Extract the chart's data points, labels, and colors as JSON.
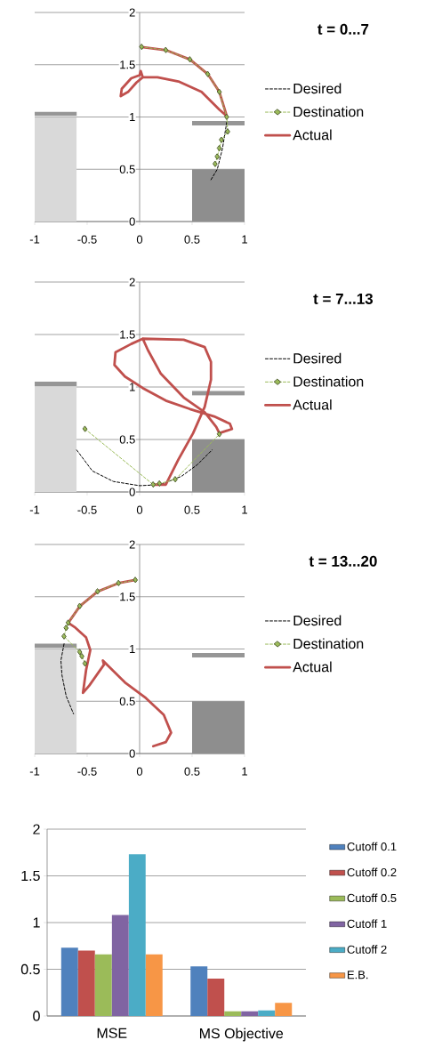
{
  "chart_data": [
    {
      "type": "line",
      "legend_title": "t = 0...7",
      "xlim": [
        -1,
        1
      ],
      "ylim": [
        0,
        2
      ],
      "xticks": [
        -1,
        -0.5,
        0,
        0.5,
        1
      ],
      "yticks": [
        0,
        0.5,
        1,
        1.5,
        2
      ],
      "grid": "y",
      "legend": "right",
      "series": [
        {
          "type": "area",
          "color": "#d9d9d9",
          "x": [
            -1,
            -0.6
          ],
          "values": [
            1.0,
            1.0
          ]
        },
        {
          "type": "line",
          "color": "#969696",
          "x": [
            -1,
            -0.6
          ],
          "values": [
            1.03,
            1.03
          ]
        },
        {
          "type": "area",
          "color": "#8e8e8e",
          "x": [
            0.5,
            1
          ],
          "values": [
            0.5,
            0.5
          ]
        },
        {
          "type": "line",
          "color": "#969696",
          "x": [
            0.5,
            1
          ],
          "values": [
            0.94,
            0.94
          ]
        },
        {
          "name": "Desired",
          "type": "line",
          "color": "#000000",
          "line_style": "dashed",
          "marker": "none",
          "x": [
            0.68,
            0.74,
            0.79,
            0.83
          ],
          "values": [
            0.4,
            0.5,
            0.7,
            0.95
          ]
        },
        {
          "name": "Destination",
          "type": "line",
          "color": "#9bbb59",
          "line_style": "dashed",
          "marker": "diamond",
          "x": [
            0.72,
            0.74,
            0.76,
            0.78,
            0.84,
            0.83,
            0.76,
            0.65,
            0.48,
            0.25,
            0.02
          ],
          "values": [
            0.55,
            0.62,
            0.7,
            0.78,
            0.86,
            1.0,
            1.24,
            1.41,
            1.55,
            1.64,
            1.67
          ]
        },
        {
          "name": "Actual",
          "type": "line",
          "color": "#c0504d",
          "line_style": "solid",
          "marker": "none",
          "x": [
            0.02,
            0.25,
            0.48,
            0.65,
            0.76,
            0.83,
            0.76,
            0.59,
            0.37,
            0.17,
            0.03,
            0.01,
            0.0,
            -0.08,
            -0.17,
            -0.18,
            -0.11,
            -0.03,
            0.03
          ],
          "values": [
            1.67,
            1.64,
            1.55,
            1.41,
            1.24,
            1.01,
            1.07,
            1.24,
            1.34,
            1.38,
            1.38,
            1.44,
            1.4,
            1.37,
            1.27,
            1.2,
            1.24,
            1.33,
            1.38
          ]
        }
      ]
    },
    {
      "type": "line",
      "legend_title": "t = 7...13",
      "xlim": [
        -1,
        1
      ],
      "ylim": [
        0,
        2
      ],
      "xticks": [
        -1,
        -0.5,
        0,
        0.5,
        1
      ],
      "yticks": [
        0,
        0.5,
        1,
        1.5,
        2
      ],
      "grid": "y",
      "legend": "right",
      "series": [
        {
          "type": "area",
          "color": "#d9d9d9",
          "x": [
            -1,
            -0.6
          ],
          "values": [
            1.0,
            1.0
          ]
        },
        {
          "type": "line",
          "color": "#969696",
          "x": [
            -1,
            -0.6
          ],
          "values": [
            1.03,
            1.03
          ]
        },
        {
          "type": "area",
          "color": "#8e8e8e",
          "x": [
            0.5,
            1
          ],
          "values": [
            0.5,
            0.5
          ]
        },
        {
          "type": "line",
          "color": "#969696",
          "x": [
            0.5,
            1
          ],
          "values": [
            0.94,
            0.94
          ]
        },
        {
          "name": "Desired",
          "type": "line",
          "color": "#000000",
          "line_style": "dashed",
          "marker": "none",
          "x": [
            -0.6,
            -0.45,
            -0.25,
            0.0,
            0.2,
            0.4,
            0.55,
            0.69
          ],
          "values": [
            0.4,
            0.2,
            0.1,
            0.06,
            0.07,
            0.15,
            0.26,
            0.4
          ]
        },
        {
          "name": "Destination",
          "type": "line",
          "color": "#9bbb59",
          "line_style": "dashed",
          "marker": "diamond",
          "x": [
            -0.52,
            0.13,
            0.19,
            0.34,
            0.76
          ],
          "values": [
            0.6,
            0.07,
            0.08,
            0.12,
            0.55
          ]
        },
        {
          "name": "Actual",
          "type": "line",
          "color": "#c0504d",
          "line_style": "solid",
          "marker": "none",
          "x": [
            0.14,
            0.25,
            0.37,
            0.51,
            0.62,
            0.68,
            0.68,
            0.62,
            0.42,
            0.03,
            -0.08,
            -0.23,
            -0.24,
            -0.14,
            0.03,
            0.25,
            0.48,
            0.71,
            0.86,
            0.88,
            0.76,
            0.73,
            0.62,
            0.42,
            0.2,
            0.08,
            0.03
          ],
          "values": [
            0.07,
            0.07,
            0.31,
            0.56,
            0.81,
            1.07,
            1.24,
            1.38,
            1.45,
            1.46,
            1.41,
            1.33,
            1.21,
            1.1,
            0.99,
            0.87,
            0.79,
            0.72,
            0.65,
            0.6,
            0.56,
            0.62,
            0.76,
            0.9,
            1.13,
            1.35,
            1.46
          ]
        }
      ]
    },
    {
      "type": "line",
      "legend_title": "t = 13...20",
      "xlim": [
        -1,
        1
      ],
      "ylim": [
        0,
        2
      ],
      "xticks": [
        -1,
        -0.5,
        0,
        0.5,
        1
      ],
      "yticks": [
        0,
        0.5,
        1,
        1.5,
        2
      ],
      "grid": "y",
      "legend": "right",
      "series": [
        {
          "type": "area",
          "color": "#d9d9d9",
          "x": [
            -1,
            -0.6
          ],
          "values": [
            1.0,
            1.0
          ]
        },
        {
          "type": "line",
          "color": "#969696",
          "x": [
            -1,
            -0.6
          ],
          "values": [
            1.03,
            1.03
          ]
        },
        {
          "type": "area",
          "color": "#8e8e8e",
          "x": [
            0.5,
            1
          ],
          "values": [
            0.5,
            0.5
          ]
        },
        {
          "type": "line",
          "color": "#969696",
          "x": [
            0.5,
            1
          ],
          "values": [
            0.94,
            0.94
          ]
        },
        {
          "name": "Desired",
          "type": "line",
          "color": "#000000",
          "line_style": "dashed",
          "marker": "none",
          "x": [
            -0.72,
            -0.75,
            -0.74,
            -0.7,
            -0.63
          ],
          "values": [
            1.05,
            0.89,
            0.75,
            0.55,
            0.38
          ]
        },
        {
          "name": "Destination",
          "type": "line",
          "color": "#9bbb59",
          "line_style": "dashed",
          "marker": "diamond",
          "x": [
            -0.04,
            -0.2,
            -0.4,
            -0.57,
            -0.68,
            -0.7,
            -0.72,
            -0.57,
            -0.55,
            -0.52
          ],
          "values": [
            1.66,
            1.63,
            1.55,
            1.41,
            1.25,
            1.2,
            1.12,
            0.97,
            0.93,
            0.86
          ]
        },
        {
          "name": "Actual",
          "type": "line",
          "color": "#c0504d",
          "line_style": "solid",
          "marker": "none",
          "x": [
            -0.04,
            -0.2,
            -0.4,
            -0.57,
            -0.68,
            -0.62,
            -0.51,
            -0.47,
            -0.51,
            -0.54,
            -0.48,
            -0.34,
            -0.35,
            -0.31,
            -0.14,
            0.06,
            0.23,
            0.3,
            0.25,
            0.13
          ],
          "values": [
            1.66,
            1.63,
            1.55,
            1.41,
            1.25,
            1.21,
            1.11,
            0.99,
            0.8,
            0.58,
            0.65,
            0.85,
            0.89,
            0.85,
            0.68,
            0.53,
            0.37,
            0.2,
            0.11,
            0.07
          ]
        }
      ]
    },
    {
      "type": "bar",
      "categories": [
        "MSE",
        "MS Objective"
      ],
      "ylim": [
        0,
        2
      ],
      "yticks": [
        0,
        0.5,
        1,
        1.5,
        2
      ],
      "grid": "y",
      "legend": "right",
      "series": [
        {
          "name": "Cutoff 0.1",
          "color": "#4f81bd",
          "values": [
            0.73,
            0.53
          ]
        },
        {
          "name": "Cutoff 0.2",
          "color": "#c0504d",
          "values": [
            0.7,
            0.4
          ]
        },
        {
          "name": "Cutoff 0.5",
          "color": "#9bbb59",
          "values": [
            0.66,
            0.05
          ]
        },
        {
          "name": "Cutoff 1",
          "color": "#8064a2",
          "values": [
            1.08,
            0.05
          ]
        },
        {
          "name": "Cutoff 2",
          "color": "#4bacc6",
          "values": [
            1.73,
            0.06
          ]
        },
        {
          "name": "E.B.",
          "color": "#f79646",
          "values": [
            0.66,
            0.14
          ]
        }
      ]
    }
  ]
}
